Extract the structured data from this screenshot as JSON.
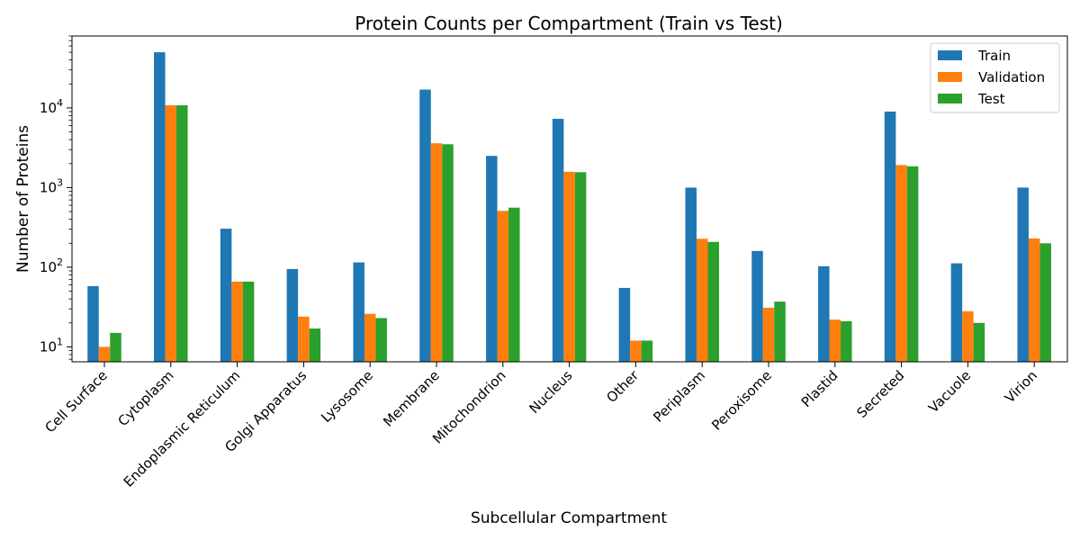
{
  "chart_data": {
    "type": "bar",
    "title": "Protein Counts per Compartment (Train vs Test)",
    "xlabel": "Subcellular Compartment",
    "ylabel": "Number of Proteins",
    "yscale": "log",
    "ylim": [
      6.5,
      80000
    ],
    "yticks": [
      {
        "value": 10,
        "base": "10",
        "exp": "1"
      },
      {
        "value": 100,
        "base": "10",
        "exp": "2"
      },
      {
        "value": 1000,
        "base": "10",
        "exp": "3"
      },
      {
        "value": 10000,
        "base": "10",
        "exp": "4"
      }
    ],
    "grid": false,
    "legend_position": "top-right",
    "categories": [
      "Cell Surface",
      "Cytoplasm",
      "Endoplasmic Reticulum",
      "Golgi Apparatus",
      "Lysosome",
      "Membrane",
      "Mitochondrion",
      "Nucleus",
      "Other",
      "Periplasm",
      "Peroxisome",
      "Plastid",
      "Secreted",
      "Vacuole",
      "Virion"
    ],
    "series": [
      {
        "name": "Train",
        "color": "#1f77b4",
        "values": [
          58,
          50000,
          305,
          95,
          115,
          17000,
          2500,
          7300,
          55,
          1000,
          160,
          103,
          9000,
          112,
          1000
        ]
      },
      {
        "name": "Validation",
        "color": "#ff7f0e",
        "values": [
          10,
          10800,
          66,
          24,
          26,
          3600,
          510,
          1580,
          12,
          228,
          31,
          22,
          1920,
          28,
          230
        ]
      },
      {
        "name": "Test",
        "color": "#2ca02c",
        "values": [
          15,
          10800,
          66,
          17,
          23,
          3500,
          560,
          1560,
          12,
          208,
          37,
          21,
          1850,
          20,
          200
        ]
      }
    ]
  }
}
